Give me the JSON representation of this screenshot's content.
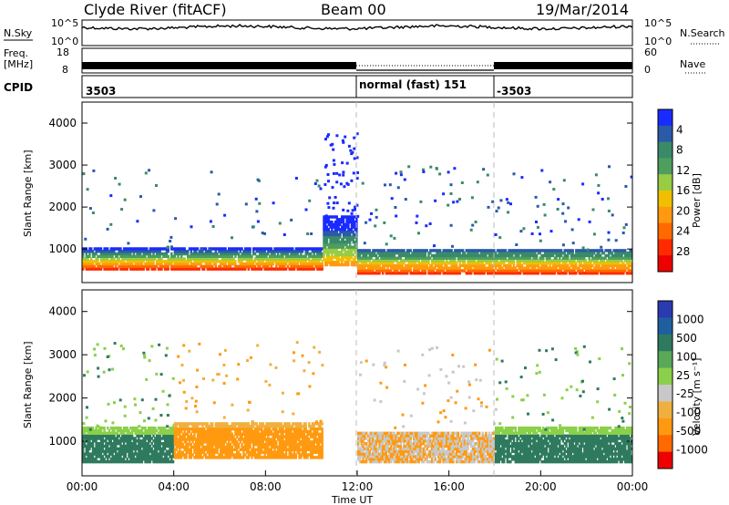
{
  "header": {
    "station": "Clyde River (fitACF)",
    "beam": "Beam 00",
    "date": "19/Mar/2014"
  },
  "noise_panel": {
    "left_label": "N.Sky",
    "right_label": "N.Search",
    "top_tick": "10^5",
    "bottom_tick": "10^0"
  },
  "freq_panel": {
    "left_label_1": "Freq.",
    "left_label_2": "[MHz]",
    "left_top_tick": "18",
    "left_bottom_tick": "8",
    "right_label": "Nave",
    "right_top_tick": "60",
    "right_bottom_tick": "0"
  },
  "cpid_panel": {
    "label": "CPID",
    "segments": [
      {
        "start": "00:00",
        "end": "12:00",
        "text": "3503"
      },
      {
        "start": "12:00",
        "end": "18:00",
        "text": "normal (fast) 151"
      },
      {
        "start": "18:00",
        "end": "24:00",
        "text": "-3503"
      }
    ]
  },
  "x_axis": {
    "label": "Time UT",
    "ticks": [
      "00:00",
      "04:00",
      "08:00",
      "12:00",
      "16:00",
      "20:00",
      "00:00"
    ]
  },
  "chart_data": [
    {
      "type": "heatmap",
      "name": "power",
      "ylabel": "Slant Range [km]",
      "yticks": [
        "1000",
        "2000",
        "3000",
        "4000"
      ],
      "ylim": [
        200,
        4500
      ],
      "xlim": [
        "00:00",
        "24:00"
      ],
      "colorbar": {
        "label": "Power [dB]",
        "ticks": [
          "4",
          "8",
          "12",
          "16",
          "20",
          "24",
          "28"
        ],
        "colors": [
          "#1a2bff",
          "#2a5aa8",
          "#3a8a6a",
          "#4e9e5e",
          "#98cc44",
          "#f0c000",
          "#ff9a10",
          "#ff6a00",
          "#ff2a00",
          "#ee0000"
        ]
      },
      "bands": [
        {
          "t_start": 0,
          "t_end": 10.5,
          "r_low": 500,
          "r_high": 1000,
          "level": "high"
        },
        {
          "t_start": 10.5,
          "t_end": 12,
          "r_low": 600,
          "r_high": 1800,
          "level": "medium"
        },
        {
          "t_start": 12,
          "t_end": 18,
          "r_low": 400,
          "r_high": 1000,
          "level": "high"
        },
        {
          "t_start": 18,
          "t_end": 24,
          "r_low": 400,
          "r_high": 1000,
          "level": "high"
        }
      ]
    },
    {
      "type": "heatmap",
      "name": "velocity",
      "ylabel": "Slant Range [km]",
      "yticks": [
        "1000",
        "2000",
        "3000",
        "4000"
      ],
      "ylim": [
        200,
        4500
      ],
      "xlim": [
        "00:00",
        "24:00"
      ],
      "colorbar": {
        "label": "Velocity [m s⁻¹]",
        "ticks": [
          "1000",
          "500",
          "100",
          "25",
          "-25",
          "-100",
          "-500",
          "-1000"
        ],
        "colors": [
          "#2a3ab0",
          "#1f5fa0",
          "#2f7a5e",
          "#5aa85a",
          "#8ad04a",
          "#c8c8c8",
          "#f0b040",
          "#ff9a10",
          "#ff6a00",
          "#ee0000"
        ]
      },
      "bands": [
        {
          "t_start": 0,
          "t_end": 4,
          "r_low": 500,
          "r_high": 1300,
          "level": "green"
        },
        {
          "t_start": 4,
          "t_end": 10.5,
          "r_low": 600,
          "r_high": 1400,
          "level": "orange"
        },
        {
          "t_start": 12,
          "t_end": 18,
          "r_low": 500,
          "r_high": 1200,
          "level": "mixed"
        },
        {
          "t_start": 18,
          "t_end": 24,
          "r_low": 500,
          "r_high": 1300,
          "level": "green"
        }
      ]
    }
  ]
}
